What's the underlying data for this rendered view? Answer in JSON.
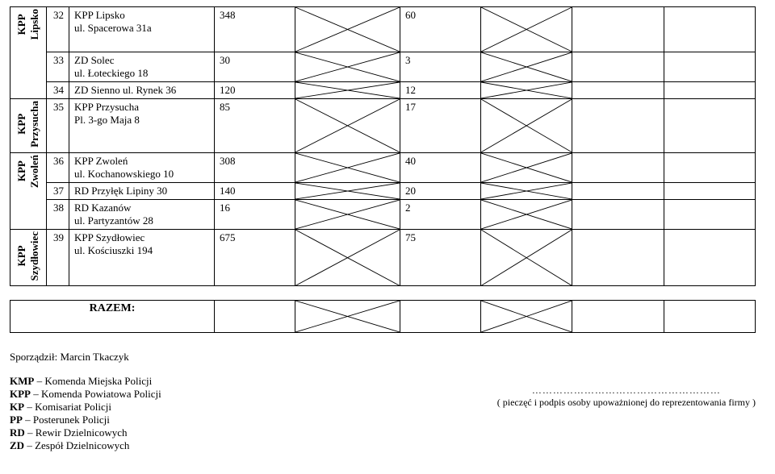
{
  "groups": [
    {
      "label": "KPP\nLipsko",
      "rows": [
        {
          "num": "32",
          "name_l1": "KPP Lipsko",
          "name_l2": "ul. Spacerowa 31a",
          "v1": "348",
          "v2": "60",
          "tall": true
        },
        {
          "num": "33",
          "name_l1": "ZD Solec",
          "name_l2": "ul. Łoteckiego 18",
          "v1": "30",
          "v2": "3"
        },
        {
          "num": "34",
          "name_l1": "ZD Sienno ul. Rynek 36",
          "name_l2": "",
          "v1": "120",
          "v2": "12"
        }
      ]
    },
    {
      "label": "KPP\nPrzysucha",
      "rows": [
        {
          "num": "35",
          "name_l1": "KPP Przysucha",
          "name_l2": "Pl. 3-go Maja 8",
          "v1": "85",
          "v2": "17",
          "tall": true
        }
      ]
    },
    {
      "label": "KPP\nZwoleń",
      "rows": [
        {
          "num": "36",
          "name_l1": "KPP Zwoleń",
          "name_l2": "ul. Kochanowskiego 10",
          "v1": "308",
          "v2": "40"
        },
        {
          "num": "37",
          "name_l1": "RD Przyłęk Lipiny 30",
          "name_l2": "",
          "v1": "140",
          "v2": "20"
        },
        {
          "num": "38",
          "name_l1": "RD Kazanów",
          "name_l2": "ul. Partyzantów 28",
          "v1": "16",
          "v2": "2"
        }
      ]
    },
    {
      "label": "KPP\nSzydłowiec",
      "rows": [
        {
          "num": "39",
          "name_l1": "KPP Szydłowiec",
          "name_l2": "ul. Kościuszki 194",
          "v1": "675",
          "v2": "75",
          "tall": true
        }
      ]
    }
  ],
  "razem_label": "RAZEM:",
  "author_line": "Sporządził: Marcin Tkaczyk",
  "legend": [
    "KMP – Komenda Miejska Policji",
    "KPP – Komenda Powiatowa Policji",
    "KP – Komisariat Policji",
    "PP  – Posterunek Policji",
    "RD – Rewir Dzielnicowych",
    "ZD – Zespół Dzielnicowych"
  ],
  "sig_dots": "………………………………………………",
  "sig_caption": "( pieczęć i podpis osoby upoważnionej do reprezentowania firmy )",
  "style": {
    "cross_stroke": "#000000",
    "cross_width": 0.9
  }
}
